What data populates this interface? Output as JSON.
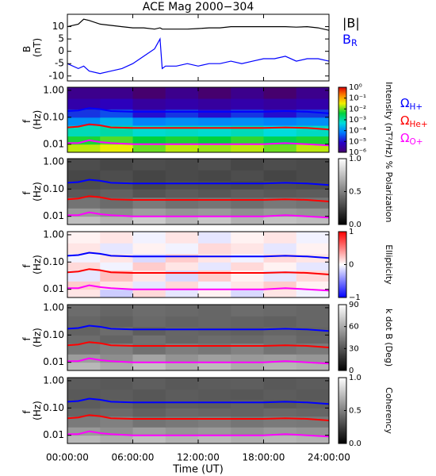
{
  "chart_data": [
    {
      "type": "line",
      "title": "ACE Mag 2000−304",
      "ylabel": "B (nT)",
      "xlim": [
        0,
        24
      ],
      "ylim": [
        -12,
        15
      ],
      "yticks": [
        10,
        5,
        0,
        -5,
        -10
      ],
      "x": [
        0,
        1,
        1.5,
        2,
        3,
        4,
        5,
        6,
        7,
        8,
        8.5,
        8.7,
        9,
        10,
        11,
        12,
        13,
        14,
        15,
        16,
        17,
        18,
        19,
        20,
        21,
        22,
        23,
        24
      ],
      "series": [
        {
          "name": "|B|",
          "color": "#000000",
          "values": [
            10,
            11,
            13,
            12.5,
            11,
            10.5,
            10,
            9.5,
            9.5,
            9,
            9.5,
            9,
            9,
            9,
            9,
            9.2,
            9.5,
            9.5,
            10,
            10,
            10,
            10,
            10,
            10,
            9.8,
            10,
            9.5,
            8.5
          ]
        },
        {
          "name": "BR",
          "color": "#0000ff",
          "subscript": true,
          "values": [
            -5,
            -7,
            -6,
            -8,
            -9,
            -8,
            -7,
            -5,
            -2,
            1,
            5,
            -7,
            -6,
            -6,
            -5,
            -6,
            -5,
            -5,
            -4,
            -5,
            -4,
            -3,
            -3,
            -2,
            -4,
            -3,
            -3,
            -4
          ]
        }
      ]
    },
    {
      "type": "heatmap",
      "ylabel": "f (Hz)",
      "xlim": [
        0,
        24
      ],
      "ylim": [
        0.005,
        1.3
      ],
      "ylog": true,
      "yticks": [
        {
          "value": 1,
          "label": "1.00"
        },
        {
          "value": 0.1,
          "label": "0.10"
        },
        {
          "value": 0.01,
          "label": "0.01"
        }
      ],
      "zlabel": "Intensity (nT²/Hz)",
      "colormap": "rainbow",
      "zlog": true,
      "zlim": [
        1e-06,
        1
      ],
      "zticks": [
        {
          "value": 1,
          "label": "10⁰"
        },
        {
          "value": 0.1,
          "label": "10⁻¹"
        },
        {
          "value": 0.01,
          "label": "10⁻²"
        },
        {
          "value": 0.001,
          "label": "10⁻³"
        },
        {
          "value": 0.0001,
          "label": "10⁻⁴"
        },
        {
          "value": 1e-05,
          "label": "10⁻⁵"
        },
        {
          "value": 1e-06,
          "label": "10⁻⁶"
        }
      ],
      "z_x": [
        0,
        3,
        6,
        9,
        12,
        15,
        18,
        21,
        24
      ],
      "z_f": [
        0.005,
        0.01,
        0.02,
        0.05,
        0.1,
        0.2,
        0.5,
        1.3
      ],
      "z": [
        [
          0.02,
          0.03,
          0.01,
          0.02,
          0.015,
          0.02,
          0.01,
          0.02
        ],
        [
          0.005,
          0.008,
          0.004,
          0.005,
          0.004,
          0.006,
          0.003,
          0.005
        ],
        [
          0.0008,
          0.001,
          0.0006,
          0.0007,
          0.0006,
          0.0008,
          0.0005,
          0.0007
        ],
        [
          0.0001,
          0.0002,
          8e-05,
          0.0001,
          9e-05,
          0.0001,
          8e-05,
          0.0001
        ],
        [
          2e-05,
          3e-05,
          1e-05,
          2e-05,
          1e-05,
          2e-05,
          1e-05,
          2e-05
        ],
        [
          4e-06,
          6e-06,
          3e-06,
          4e-06,
          3e-06,
          4e-06,
          3e-06,
          4e-06
        ],
        [
          2e-06,
          2e-06,
          1e-06,
          2e-06,
          1e-06,
          2e-06,
          1e-06,
          2e-06
        ]
      ],
      "legend": true,
      "x": [
        0,
        1,
        2,
        3,
        4,
        6,
        8,
        10,
        12,
        14,
        16,
        18,
        20,
        22,
        24
      ],
      "series": [
        {
          "name": "ΩH+",
          "color": "#0000ff",
          "subscript": true,
          "values": [
            0.17,
            0.18,
            0.22,
            0.2,
            0.17,
            0.16,
            0.16,
            0.16,
            0.16,
            0.16,
            0.16,
            0.16,
            0.17,
            0.16,
            0.14
          ]
        },
        {
          "name": "ΩHe+",
          "color": "#ff0000",
          "subscript": true,
          "values": [
            0.042,
            0.045,
            0.055,
            0.05,
            0.042,
            0.04,
            0.04,
            0.04,
            0.04,
            0.04,
            0.04,
            0.04,
            0.042,
            0.04,
            0.035
          ]
        },
        {
          "name": "ΩO+",
          "color": "#ff00ff",
          "subscript": true,
          "values": [
            0.011,
            0.011,
            0.014,
            0.012,
            0.011,
            0.01,
            0.01,
            0.01,
            0.01,
            0.01,
            0.01,
            0.01,
            0.011,
            0.01,
            0.009
          ]
        }
      ]
    },
    {
      "type": "heatmap",
      "ylabel": "f (Hz)",
      "xlim": [
        0,
        24
      ],
      "ylim": [
        0.005,
        1.3
      ],
      "ylog": true,
      "yticks": [
        {
          "value": 1,
          "label": "1.00"
        },
        {
          "value": 0.1,
          "label": "0.10"
        },
        {
          "value": 0.01,
          "label": "0.01"
        }
      ],
      "zlabel": "% Polarization",
      "colormap": "gray",
      "zlim": [
        0,
        1
      ],
      "zticks": [
        {
          "value": 0,
          "label": "0.0"
        },
        {
          "value": 0.5,
          "label": "0.5"
        },
        {
          "value": 1,
          "label": "1.0"
        }
      ],
      "z_x": [
        0,
        3,
        6,
        9,
        12,
        15,
        18,
        21,
        24
      ],
      "z_f": [
        0.005,
        0.01,
        0.02,
        0.05,
        0.1,
        0.2,
        0.5,
        1.3
      ],
      "z": [
        [
          0.75,
          0.7,
          0.8,
          0.72,
          0.78,
          0.7,
          0.76,
          0.74
        ],
        [
          0.6,
          0.55,
          0.62,
          0.58,
          0.6,
          0.56,
          0.6,
          0.58
        ],
        [
          0.45,
          0.42,
          0.48,
          0.44,
          0.46,
          0.43,
          0.47,
          0.45
        ],
        [
          0.35,
          0.38,
          0.33,
          0.36,
          0.34,
          0.37,
          0.35,
          0.36
        ],
        [
          0.3,
          0.32,
          0.28,
          0.31,
          0.3,
          0.29,
          0.31,
          0.3
        ],
        [
          0.28,
          0.3,
          0.27,
          0.29,
          0.28,
          0.3,
          0.27,
          0.29
        ],
        [
          0.3,
          0.28,
          0.3,
          0.29,
          0.31,
          0.28,
          0.3,
          0.29
        ]
      ],
      "x": [
        0,
        1,
        2,
        3,
        4,
        6,
        8,
        10,
        12,
        14,
        16,
        18,
        20,
        22,
        24
      ],
      "series": [
        {
          "name": "ΩH+",
          "color": "#0000ff",
          "values": [
            0.17,
            0.18,
            0.22,
            0.2,
            0.17,
            0.16,
            0.16,
            0.16,
            0.16,
            0.16,
            0.16,
            0.16,
            0.17,
            0.16,
            0.14
          ]
        },
        {
          "name": "ΩHe+",
          "color": "#ff0000",
          "values": [
            0.042,
            0.045,
            0.055,
            0.05,
            0.042,
            0.04,
            0.04,
            0.04,
            0.04,
            0.04,
            0.04,
            0.04,
            0.042,
            0.04,
            0.035
          ]
        },
        {
          "name": "ΩO+",
          "color": "#ff00ff",
          "values": [
            0.011,
            0.011,
            0.014,
            0.012,
            0.011,
            0.01,
            0.01,
            0.01,
            0.01,
            0.01,
            0.01,
            0.01,
            0.011,
            0.01,
            0.009
          ]
        }
      ]
    },
    {
      "type": "heatmap",
      "ylabel": "f (Hz)",
      "xlim": [
        0,
        24
      ],
      "ylim": [
        0.005,
        1.3
      ],
      "ylog": true,
      "yticks": [
        {
          "value": 1,
          "label": "1.00"
        },
        {
          "value": 0.1,
          "label": "0.10"
        },
        {
          "value": 0.01,
          "label": "0.01"
        }
      ],
      "zlabel": "Ellipticity",
      "colormap": "bwr",
      "zlim": [
        -1,
        1
      ],
      "zticks": [
        1,
        0,
        {
          "value": -1,
          "label": "−1"
        }
      ],
      "z_x": [
        0,
        3,
        6,
        9,
        12,
        15,
        18,
        21,
        24
      ],
      "z_f": [
        0.005,
        0.01,
        0.02,
        0.05,
        0.1,
        0.2,
        0.5,
        1.3
      ],
      "z": [
        [
          0.1,
          -0.2,
          0.15,
          -0.1,
          0.05,
          -0.15,
          0.1,
          -0.05
        ],
        [
          0.2,
          0.1,
          -0.1,
          0.15,
          -0.05,
          0.1,
          0.2,
          0.05
        ],
        [
          -0.1,
          0.25,
          0.1,
          -0.15,
          0.2,
          0.05,
          -0.1,
          0.15
        ],
        [
          0.15,
          -0.05,
          0.2,
          0.1,
          -0.1,
          0.15,
          0.05,
          -0.1
        ],
        [
          -0.05,
          0.1,
          -0.15,
          0.2,
          0.1,
          -0.05,
          0.15,
          0.1
        ],
        [
          0.1,
          -0.1,
          0.05,
          -0.05,
          0.15,
          0.1,
          -0.1,
          0.05
        ],
        [
          0.05,
          0.1,
          -0.05,
          0.1,
          -0.1,
          0.05,
          0.1,
          -0.05
        ]
      ],
      "x": [
        0,
        1,
        2,
        3,
        4,
        6,
        8,
        10,
        12,
        14,
        16,
        18,
        20,
        22,
        24
      ],
      "series": [
        {
          "name": "ΩH+",
          "color": "#0000ff",
          "values": [
            0.17,
            0.18,
            0.22,
            0.2,
            0.17,
            0.16,
            0.16,
            0.16,
            0.16,
            0.16,
            0.16,
            0.16,
            0.17,
            0.16,
            0.14
          ]
        },
        {
          "name": "ΩHe+",
          "color": "#ff0000",
          "values": [
            0.042,
            0.045,
            0.055,
            0.05,
            0.042,
            0.04,
            0.04,
            0.04,
            0.04,
            0.04,
            0.04,
            0.04,
            0.042,
            0.04,
            0.035
          ]
        },
        {
          "name": "ΩO+",
          "color": "#ff00ff",
          "values": [
            0.011,
            0.011,
            0.014,
            0.012,
            0.011,
            0.01,
            0.01,
            0.01,
            0.01,
            0.01,
            0.01,
            0.01,
            0.011,
            0.01,
            0.009
          ]
        }
      ]
    },
    {
      "type": "heatmap",
      "ylabel": "f (Hz)",
      "xlim": [
        0,
        24
      ],
      "ylim": [
        0.005,
        1.3
      ],
      "ylog": true,
      "yticks": [
        {
          "value": 1,
          "label": "1.00"
        },
        {
          "value": 0.1,
          "label": "0.10"
        },
        {
          "value": 0.01,
          "label": "0.01"
        }
      ],
      "zlabel": "k dot B (Deg)",
      "colormap": "gray",
      "zlim": [
        0,
        90
      ],
      "zticks": [
        90,
        60,
        30,
        0
      ],
      "z_x": [
        0,
        3,
        6,
        9,
        12,
        15,
        18,
        21,
        24
      ],
      "z_f": [
        0.005,
        0.01,
        0.02,
        0.05,
        0.1,
        0.2,
        0.5,
        1.3
      ],
      "z": [
        [
          65,
          60,
          68,
          62,
          66,
          60,
          64,
          62
        ],
        [
          55,
          50,
          58,
          52,
          56,
          54,
          55,
          53
        ],
        [
          42,
          45,
          40,
          44,
          42,
          46,
          41,
          43
        ],
        [
          38,
          35,
          40,
          36,
          38,
          37,
          39,
          36
        ],
        [
          35,
          38,
          33,
          36,
          35,
          34,
          36,
          35
        ],
        [
          36,
          34,
          37,
          35,
          36,
          35,
          34,
          36
        ],
        [
          38,
          36,
          38,
          37,
          36,
          38,
          37,
          36
        ]
      ],
      "x": [
        0,
        1,
        2,
        3,
        4,
        6,
        8,
        10,
        12,
        14,
        16,
        18,
        20,
        22,
        24
      ],
      "series": [
        {
          "name": "ΩH+",
          "color": "#0000ff",
          "values": [
            0.17,
            0.18,
            0.22,
            0.2,
            0.17,
            0.16,
            0.16,
            0.16,
            0.16,
            0.16,
            0.16,
            0.16,
            0.17,
            0.16,
            0.14
          ]
        },
        {
          "name": "ΩHe+",
          "color": "#ff0000",
          "values": [
            0.042,
            0.045,
            0.055,
            0.05,
            0.042,
            0.04,
            0.04,
            0.04,
            0.04,
            0.04,
            0.04,
            0.04,
            0.042,
            0.04,
            0.035
          ]
        },
        {
          "name": "ΩO+",
          "color": "#ff00ff",
          "values": [
            0.011,
            0.011,
            0.014,
            0.012,
            0.011,
            0.01,
            0.01,
            0.01,
            0.01,
            0.01,
            0.01,
            0.01,
            0.011,
            0.01,
            0.009
          ]
        }
      ]
    },
    {
      "type": "heatmap",
      "ylabel": "f (Hz)",
      "xlim": [
        0,
        24
      ],
      "ylim": [
        0.005,
        1.3
      ],
      "ylog": true,
      "yticks": [
        {
          "value": 1,
          "label": "1.00"
        },
        {
          "value": 0.1,
          "label": "0.10"
        },
        {
          "value": 0.01,
          "label": "0.01"
        }
      ],
      "zlabel": "Coherency",
      "colormap": "gray",
      "zlim": [
        0,
        1
      ],
      "zticks": [
        {
          "value": 1,
          "label": "1.0"
        },
        {
          "value": 0.5,
          "label": "0.5"
        },
        {
          "value": 0,
          "label": "0.0"
        }
      ],
      "z_x": [
        0,
        3,
        6,
        9,
        12,
        15,
        18,
        21,
        24
      ],
      "z_f": [
        0.005,
        0.01,
        0.02,
        0.05,
        0.1,
        0.2,
        0.5,
        1.3
      ],
      "z": [
        [
          0.72,
          0.68,
          0.75,
          0.7,
          0.73,
          0.69,
          0.72,
          0.7
        ],
        [
          0.6,
          0.56,
          0.62,
          0.58,
          0.6,
          0.57,
          0.6,
          0.58
        ],
        [
          0.48,
          0.5,
          0.45,
          0.47,
          0.49,
          0.46,
          0.48,
          0.47
        ],
        [
          0.4,
          0.42,
          0.38,
          0.41,
          0.4,
          0.39,
          0.41,
          0.4
        ],
        [
          0.36,
          0.38,
          0.35,
          0.37,
          0.36,
          0.38,
          0.35,
          0.37
        ],
        [
          0.35,
          0.36,
          0.34,
          0.36,
          0.35,
          0.34,
          0.36,
          0.35
        ],
        [
          0.36,
          0.35,
          0.37,
          0.35,
          0.36,
          0.37,
          0.35,
          0.36
        ]
      ],
      "x": [
        0,
        1,
        2,
        3,
        4,
        6,
        8,
        10,
        12,
        14,
        16,
        18,
        20,
        22,
        24
      ],
      "series": [
        {
          "name": "ΩH+",
          "color": "#0000ff",
          "values": [
            0.17,
            0.18,
            0.22,
            0.2,
            0.17,
            0.16,
            0.16,
            0.16,
            0.16,
            0.16,
            0.16,
            0.16,
            0.17,
            0.16,
            0.14
          ]
        },
        {
          "name": "ΩHe+",
          "color": "#ff0000",
          "values": [
            0.042,
            0.045,
            0.055,
            0.05,
            0.042,
            0.04,
            0.04,
            0.04,
            0.04,
            0.04,
            0.04,
            0.04,
            0.042,
            0.04,
            0.035
          ]
        },
        {
          "name": "ΩO+",
          "color": "#ff00ff",
          "values": [
            0.011,
            0.011,
            0.014,
            0.012,
            0.011,
            0.01,
            0.01,
            0.01,
            0.01,
            0.01,
            0.01,
            0.01,
            0.011,
            0.01,
            0.009
          ]
        }
      ],
      "xlabel": "Time (UT)",
      "xticks": [
        {
          "value": 0,
          "label": "00:00:00"
        },
        {
          "value": 6,
          "label": "06:00:00"
        },
        {
          "value": 12,
          "label": "12:00:00"
        },
        {
          "value": 18,
          "label": "18:00:00"
        },
        {
          "value": 24,
          "label": "24:00:00"
        }
      ]
    }
  ]
}
